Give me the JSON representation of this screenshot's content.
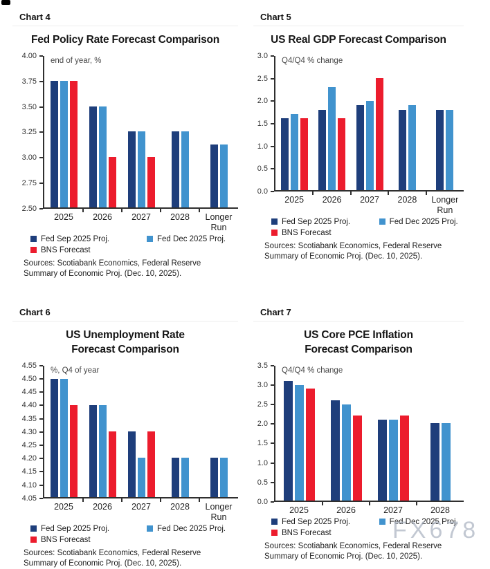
{
  "page": {
    "watermark": "FX678"
  },
  "chart_data": [
    {
      "type": "bar",
      "panel_label": "Chart 4",
      "title": "Fed Policy Rate Forecast Comparison",
      "unit_label": "end of year, %",
      "ylim": [
        2.5,
        4.0
      ],
      "yticks": [
        "4.00",
        "3.75",
        "3.50",
        "3.25",
        "3.00",
        "2.75",
        "2.50"
      ],
      "grid": false,
      "legend_position": "bottom",
      "categories": [
        "2025",
        "2026",
        "2027",
        "2028",
        "Longer\nRun"
      ],
      "series": [
        {
          "name": "Fed Sep 2025 Proj.",
          "color": "#1e3e7b",
          "values": [
            3.75,
            3.5,
            3.25,
            3.25,
            3.12
          ]
        },
        {
          "name": "Fed Dec 2025 Proj.",
          "color": "#4193ce",
          "values": [
            3.75,
            3.5,
            3.25,
            3.25,
            3.12
          ]
        },
        {
          "name": "BNS Forecast",
          "color": "#ec1c2d",
          "values": [
            3.75,
            3.0,
            3.0,
            null,
            null
          ]
        }
      ],
      "sources": "Sources: Scotiabank Economics, Federal Reserve Summary of Economic Proj. (Dec. 10, 2025)."
    },
    {
      "type": "bar",
      "panel_label": "Chart 5",
      "title": "US Real GDP Forecast Comparison",
      "unit_label": "Q4/Q4 % change",
      "ylim": [
        0.0,
        3.0
      ],
      "yticks": [
        "3.0",
        "2.5",
        "2.0",
        "1.5",
        "1.0",
        "0.5",
        "0.0"
      ],
      "grid": false,
      "legend_position": "bottom",
      "categories": [
        "2025",
        "2026",
        "2027",
        "2028",
        "Longer\nRun"
      ],
      "series": [
        {
          "name": "Fed Sep 2025 Proj.",
          "color": "#1e3e7b",
          "values": [
            1.6,
            1.8,
            1.9,
            1.8,
            1.8
          ]
        },
        {
          "name": "Fed Dec 2025 Proj.",
          "color": "#4193ce",
          "values": [
            1.7,
            2.3,
            2.0,
            1.9,
            1.8
          ]
        },
        {
          "name": "BNS Forecast",
          "color": "#ec1c2d",
          "values": [
            1.6,
            1.6,
            2.5,
            null,
            null
          ]
        }
      ],
      "sources": "Sources: Scotiabank Economics, Federal Reserve Summary of Economic Proj. (Dec. 10, 2025)."
    },
    {
      "type": "bar",
      "panel_label": "Chart 6",
      "title": "US Unemployment Rate\nForecast Comparison",
      "unit_label": "%, Q4 of year",
      "ylim": [
        4.05,
        4.55
      ],
      "yticks": [
        "4.55",
        "4.50",
        "4.45",
        "4.40",
        "4.35",
        "4.30",
        "4.25",
        "4.20",
        "4.15",
        "4.10",
        "4.05"
      ],
      "grid": false,
      "legend_position": "bottom",
      "categories": [
        "2025",
        "2026",
        "2027",
        "2028",
        "Longer\nRun"
      ],
      "series": [
        {
          "name": "Fed Sep 2025 Proj.",
          "color": "#1e3e7b",
          "values": [
            4.5,
            4.4,
            4.3,
            4.2,
            4.2
          ]
        },
        {
          "name": "Fed Dec 2025 Proj.",
          "color": "#4193ce",
          "values": [
            4.5,
            4.4,
            4.2,
            4.2,
            4.2
          ]
        },
        {
          "name": "BNS Forecast",
          "color": "#ec1c2d",
          "values": [
            4.4,
            4.3,
            4.3,
            null,
            null
          ]
        }
      ],
      "sources": "Sources: Scotiabank Economics, Federal Reserve Summary of Economic Proj. (Dec. 10, 2025)."
    },
    {
      "type": "bar",
      "panel_label": "Chart 7",
      "title": "US Core PCE Inflation\nForecast Comparison",
      "unit_label": "Q4/Q4 % change",
      "ylim": [
        0.0,
        3.5
      ],
      "yticks": [
        "3.5",
        "3.0",
        "2.5",
        "2.0",
        "1.5",
        "1.0",
        "0.5",
        "0.0"
      ],
      "grid": false,
      "legend_position": "bottom",
      "categories": [
        "2025",
        "2026",
        "2027",
        "2028"
      ],
      "series": [
        {
          "name": "Fed Sep 2025 Proj.",
          "color": "#1e3e7b",
          "values": [
            3.1,
            2.6,
            2.1,
            2.0
          ]
        },
        {
          "name": "Fed Dec 2025 Proj.",
          "color": "#4193ce",
          "values": [
            3.0,
            2.5,
            2.1,
            2.0
          ]
        },
        {
          "name": "BNS Forecast",
          "color": "#ec1c2d",
          "values": [
            2.9,
            2.2,
            2.2,
            null
          ]
        }
      ],
      "sources": "Sources: Scotiabank Economics, Federal Reserve Summary of Economic Proj. (Dec. 10, 2025)."
    }
  ]
}
